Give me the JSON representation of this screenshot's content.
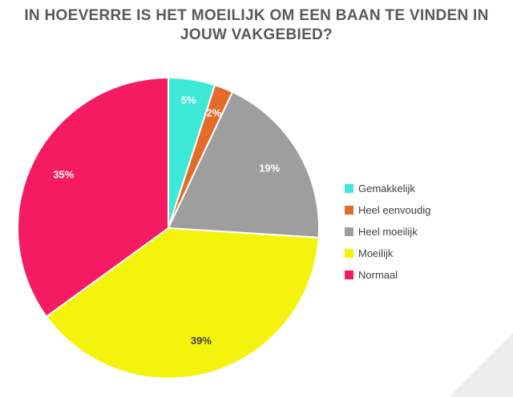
{
  "chart_data": {
    "type": "pie",
    "title_lines": [
      "IN HOEVERRE IS HET MOEILIJK OM EEN BAAN TE VINDEN IN",
      "JOUW VAKGEBIED?"
    ],
    "slices": [
      {
        "label": "Gemakkelijk",
        "value": 5,
        "value_label": "5%",
        "color": "#3de8d6",
        "label_color": "#ffffff"
      },
      {
        "label": "Heel eenvoudig",
        "value": 2,
        "value_label": "2%",
        "color": "#e36c2a",
        "label_color": "#ffffff"
      },
      {
        "label": "Heel moeilijk",
        "value": 19,
        "value_label": "19%",
        "color": "#9e9e9e",
        "label_color": "#ffffff"
      },
      {
        "label": "Moeilijk",
        "value": 39,
        "value_label": "39%",
        "color": "#f3f30e",
        "label_color": "#404040"
      },
      {
        "label": "Normaal",
        "value": 35,
        "value_label": "35%",
        "color": "#f41b63",
        "label_color": "#ffffff"
      }
    ],
    "legend_position": "right",
    "start_angle": "12 o'clock, clockwise"
  }
}
